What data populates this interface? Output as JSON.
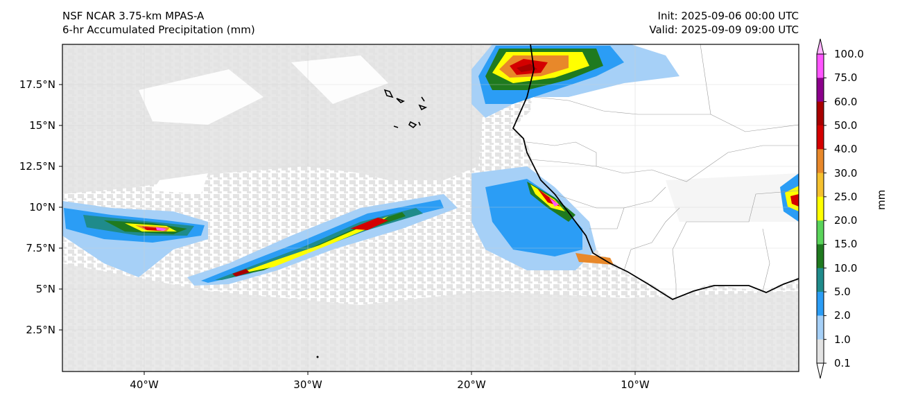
{
  "header": {
    "model": "NSF NCAR 3.75-km MPAS-A",
    "field": "6-hr Accumulated Precipitation (mm)",
    "init": "Init: 2025-09-06 00:00 UTC",
    "valid": "Valid: 2025-09-09 09:00 UTC"
  },
  "axes": {
    "lat_labels": [
      "17.5°N",
      "15°N",
      "12.5°N",
      "10°N",
      "7.5°N",
      "5°N",
      "2.5°N"
    ],
    "lon_labels": [
      "40°W",
      "30°W",
      "20°W",
      "10°W"
    ]
  },
  "colorbar": {
    "unit": "mm",
    "levels": [
      "100.0",
      "75.0",
      "60.0",
      "50.0",
      "40.0",
      "30.0",
      "25.0",
      "20.0",
      "15.0",
      "10.0",
      "5.0",
      "2.0",
      "1.0",
      "0.1"
    ],
    "colors": [
      "#ff55ff",
      "#8b008b",
      "#a80000",
      "#d40000",
      "#e8882a",
      "#f5c12f",
      "#ffff00",
      "#5ad45a",
      "#1f7a1f",
      "#1f8b8b",
      "#2b9df5",
      "#a6d0f7",
      "#e3e3e3"
    ],
    "top_color": "#ffb3ff"
  },
  "colors": {
    "background_light_gray": "#e3e3e3",
    "land": "#ffffff",
    "coastline": "#000000",
    "borders": "#9a9a9a"
  }
}
